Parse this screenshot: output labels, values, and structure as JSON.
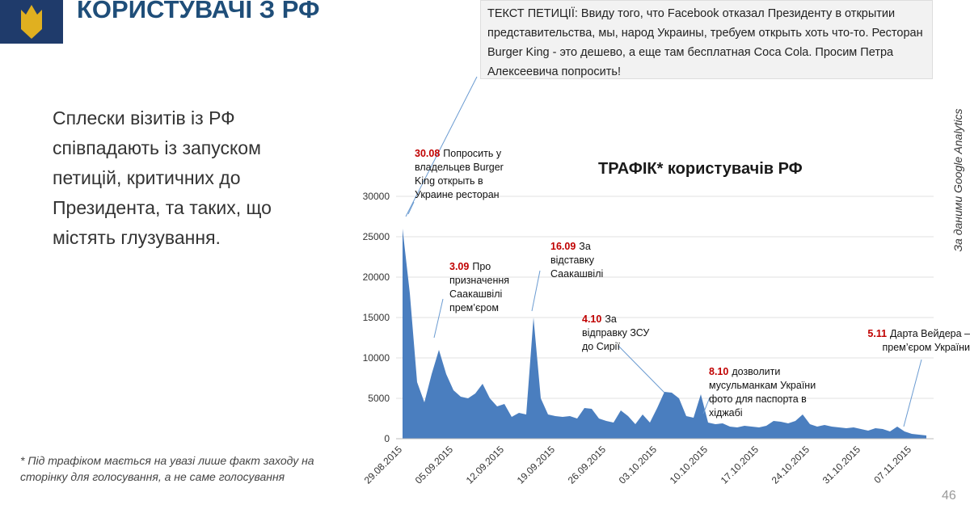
{
  "slide": {
    "title": "КОРИСТУВАЧІ З РФ",
    "petition": "ТЕКСТ ПЕТИЦІЇ: Ввиду того, что Facebook отказал Президенту в открытии представительства, мы, народ Украины, требуем открыть хоть что-то. Ресторан Burger King - это дешево, а еще там бесплатная Coca Cola. Просим Петра Алексеевича попросить!",
    "lead": "Сплески візитів із РФ співпадають із запуском петицій, критичних до Президента, та таких, що містять глузування.",
    "footnote": "* Під трафіком мається на увазі лише факт заходу на сторінку для голосування, а не саме голосування",
    "source": "За даними Google Analytics",
    "page": "46"
  },
  "chart_data": {
    "type": "area",
    "title": "ТРАФІК* користувачів РФ",
    "color": "#4a7ebf",
    "grid": true,
    "x": [
      "29.08.2015",
      "30.08.2015",
      "31.08.2015",
      "01.09.2015",
      "02.09.2015",
      "03.09.2015",
      "04.09.2015",
      "05.09.2015",
      "06.09.2015",
      "07.09.2015",
      "08.09.2015",
      "09.09.2015",
      "10.09.2015",
      "11.09.2015",
      "12.09.2015",
      "13.09.2015",
      "14.09.2015",
      "15.09.2015",
      "16.09.2015",
      "17.09.2015",
      "18.09.2015",
      "19.09.2015",
      "20.09.2015",
      "21.09.2015",
      "22.09.2015",
      "23.09.2015",
      "24.09.2015",
      "25.09.2015",
      "26.09.2015",
      "27.09.2015",
      "28.09.2015",
      "29.09.2015",
      "30.09.2015",
      "01.10.2015",
      "02.10.2015",
      "03.10.2015",
      "04.10.2015",
      "05.10.2015",
      "06.10.2015",
      "07.10.2015",
      "08.10.2015",
      "09.10.2015",
      "10.10.2015",
      "11.10.2015",
      "12.10.2015",
      "13.10.2015",
      "14.10.2015",
      "15.10.2015",
      "16.10.2015",
      "17.10.2015",
      "18.10.2015",
      "19.10.2015",
      "20.10.2015",
      "21.10.2015",
      "22.10.2015",
      "23.10.2015",
      "24.10.2015",
      "25.10.2015",
      "26.10.2015",
      "27.10.2015",
      "28.10.2015",
      "29.10.2015",
      "30.10.2015",
      "31.10.2015",
      "01.11.2015",
      "02.11.2015",
      "03.11.2015",
      "04.11.2015",
      "05.11.2015",
      "06.11.2015",
      "07.11.2015",
      "08.11.2015",
      "09.11.2015"
    ],
    "values": [
      26000,
      18000,
      7000,
      4500,
      8000,
      11000,
      8000,
      6000,
      5200,
      5000,
      5600,
      6800,
      5000,
      4000,
      4300,
      2700,
      3200,
      3000,
      15000,
      5000,
      3000,
      2800,
      2700,
      2800,
      2500,
      3800,
      3700,
      2500,
      2200,
      2000,
      3500,
      2800,
      1800,
      3000,
      2000,
      3800,
      5800,
      5700,
      5000,
      2800,
      2600,
      5500,
      2000,
      1800,
      1900,
      1500,
      1400,
      1600,
      1500,
      1400,
      1600,
      2200,
      2100,
      1900,
      2200,
      3000,
      1800,
      1500,
      1700,
      1500,
      1400,
      1300,
      1400,
      1200,
      1000,
      1300,
      1200,
      900,
      1500,
      900,
      600,
      500,
      400
    ],
    "xticks": [
      "29.08.2015",
      "05.09.2015",
      "12.09.2015",
      "19.09.2015",
      "26.09.2015",
      "03.10.2015",
      "10.10.2015",
      "17.10.2015",
      "24.10.2015",
      "31.10.2015",
      "07.11.2015"
    ],
    "ylim": [
      0,
      30000
    ],
    "yticks": [
      0,
      5000,
      10000,
      15000,
      20000,
      25000,
      30000
    ],
    "annotations": [
      {
        "date": "30.08",
        "text": "Попросить у владельцев Burger King открыть в Украине ресторан"
      },
      {
        "date": "3.09",
        "text": "Про призначення Саакашвілі прем’єром"
      },
      {
        "date": "16.09",
        "text": "За відставку Саакашвілі"
      },
      {
        "date": "4.10",
        "text": "За відправку ЗСУ до Сирії"
      },
      {
        "date": "8.10",
        "text": "дозволити мусульманкам України фото для паспорта в хіджабі"
      },
      {
        "date": "5.11",
        "text": "Дарта Вейдера – прем’єром України"
      }
    ]
  }
}
